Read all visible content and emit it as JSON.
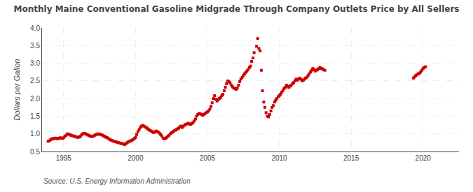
{
  "chart_data": {
    "type": "scatter",
    "title": "Monthly Maine Conventional Gasoline Midgrade Through Company Outlets Price by All Sellers",
    "ylabel": "Dollars per Gallon",
    "annotations": [
      "Source: U.S. Energy Information Administration"
    ],
    "color": "#cc0000",
    "marker": "square",
    "grid": true,
    "xlim": [
      1993.5,
      2022.5
    ],
    "xticks": [
      1995,
      2000,
      2005,
      2010,
      2015,
      2020
    ],
    "ylim": [
      0.5,
      4.0
    ],
    "yticks": [
      0.5,
      {
        "value": 1.0,
        "label": "1.0"
      },
      1.5,
      {
        "value": 2.0,
        "label": "2.0"
      },
      2.5,
      {
        "value": 3.0,
        "label": "3.0"
      },
      3.5,
      {
        "value": 4.0,
        "label": "4.0"
      }
    ],
    "x": [
      1993.92,
      1994.0,
      1994.08,
      1994.17,
      1994.25,
      1994.33,
      1994.42,
      1994.5,
      1994.58,
      1994.67,
      1994.75,
      1994.83,
      1994.92,
      1995.0,
      1995.08,
      1995.17,
      1995.25,
      1995.33,
      1995.42,
      1995.5,
      1995.58,
      1995.67,
      1995.75,
      1995.83,
      1995.92,
      1996.0,
      1996.08,
      1996.17,
      1996.25,
      1996.33,
      1996.42,
      1996.5,
      1996.58,
      1996.67,
      1996.75,
      1996.83,
      1996.92,
      1997.0,
      1997.08,
      1997.17,
      1997.25,
      1997.33,
      1997.42,
      1997.5,
      1997.58,
      1997.67,
      1997.75,
      1997.83,
      1997.92,
      1998.0,
      1998.08,
      1998.17,
      1998.25,
      1998.33,
      1998.42,
      1998.5,
      1998.58,
      1998.67,
      1998.75,
      1998.83,
      1998.92,
      1999.0,
      1999.08,
      1999.17,
      1999.25,
      1999.33,
      1999.42,
      1999.5,
      1999.58,
      1999.67,
      1999.75,
      1999.83,
      1999.92,
      2000.0,
      2000.08,
      2000.17,
      2000.25,
      2000.33,
      2000.42,
      2000.5,
      2000.58,
      2000.67,
      2000.75,
      2000.83,
      2000.92,
      2001.0,
      2001.08,
      2001.17,
      2001.25,
      2001.33,
      2001.42,
      2001.5,
      2001.58,
      2001.67,
      2001.75,
      2001.83,
      2001.92,
      2002.0,
      2002.08,
      2002.17,
      2002.25,
      2002.33,
      2002.42,
      2002.5,
      2002.58,
      2002.67,
      2002.75,
      2002.83,
      2002.92,
      2003.0,
      2003.08,
      2003.17,
      2003.25,
      2003.33,
      2003.42,
      2003.5,
      2003.58,
      2003.67,
      2003.75,
      2003.83,
      2003.92,
      2004.0,
      2004.08,
      2004.17,
      2004.25,
      2004.33,
      2004.42,
      2004.5,
      2004.58,
      2004.67,
      2004.75,
      2004.83,
      2004.92,
      2005.0,
      2005.08,
      2005.17,
      2005.25,
      2005.33,
      2005.42,
      2005.5,
      2005.58,
      2005.67,
      2005.75,
      2005.83,
      2005.92,
      2006.0,
      2006.08,
      2006.17,
      2006.25,
      2006.33,
      2006.42,
      2006.5,
      2006.58,
      2006.67,
      2006.75,
      2006.83,
      2006.92,
      2007.0,
      2007.08,
      2007.17,
      2007.25,
      2007.33,
      2007.42,
      2007.5,
      2007.58,
      2007.67,
      2007.75,
      2007.83,
      2007.92,
      2008.0,
      2008.08,
      2008.17,
      2008.25,
      2008.42,
      2008.5,
      2008.58,
      2008.67,
      2008.75,
      2008.83,
      2008.92,
      2009.0,
      2009.08,
      2009.17,
      2009.25,
      2009.33,
      2009.42,
      2009.5,
      2009.58,
      2009.67,
      2009.75,
      2009.83,
      2009.92,
      2010.0,
      2010.08,
      2010.17,
      2010.25,
      2010.33,
      2010.42,
      2010.5,
      2010.58,
      2010.67,
      2010.75,
      2010.83,
      2010.92,
      2011.0,
      2011.08,
      2011.17,
      2011.25,
      2011.33,
      2011.42,
      2011.5,
      2011.58,
      2011.67,
      2011.75,
      2011.83,
      2011.92,
      2012.0,
      2012.08,
      2012.17,
      2012.25,
      2012.33,
      2012.42,
      2012.5,
      2012.58,
      2012.67,
      2012.75,
      2012.83,
      2012.92,
      2013.0,
      2013.08,
      2013.17,
      2019.33,
      2019.42,
      2019.5,
      2019.58,
      2019.67,
      2019.75,
      2019.83,
      2019.92,
      2020.0,
      2020.08,
      2020.17
    ],
    "values": [
      0.79,
      0.8,
      0.83,
      0.85,
      0.87,
      0.86,
      0.88,
      0.87,
      0.86,
      0.87,
      0.89,
      0.88,
      0.87,
      0.89,
      0.93,
      0.96,
      1.0,
      0.99,
      0.98,
      0.96,
      0.95,
      0.94,
      0.93,
      0.92,
      0.91,
      0.9,
      0.91,
      0.93,
      0.97,
      1.0,
      1.01,
      1.01,
      0.99,
      0.97,
      0.96,
      0.94,
      0.92,
      0.93,
      0.94,
      0.96,
      0.98,
      0.99,
      1.0,
      0.99,
      0.98,
      0.97,
      0.95,
      0.93,
      0.91,
      0.9,
      0.88,
      0.85,
      0.83,
      0.82,
      0.8,
      0.79,
      0.78,
      0.77,
      0.76,
      0.75,
      0.74,
      0.73,
      0.72,
      0.71,
      0.7,
      0.72,
      0.75,
      0.77,
      0.79,
      0.8,
      0.82,
      0.84,
      0.87,
      0.9,
      0.98,
      1.06,
      1.12,
      1.18,
      1.22,
      1.24,
      1.22,
      1.2,
      1.18,
      1.15,
      1.12,
      1.1,
      1.08,
      1.06,
      1.04,
      1.05,
      1.08,
      1.07,
      1.05,
      1.02,
      0.98,
      0.94,
      0.88,
      0.86,
      0.87,
      0.9,
      0.93,
      0.96,
      1.0,
      1.03,
      1.05,
      1.08,
      1.1,
      1.12,
      1.14,
      1.16,
      1.2,
      1.22,
      1.18,
      1.22,
      1.25,
      1.27,
      1.28,
      1.3,
      1.28,
      1.27,
      1.29,
      1.32,
      1.36,
      1.42,
      1.5,
      1.55,
      1.58,
      1.57,
      1.55,
      1.53,
      1.55,
      1.57,
      1.6,
      1.62,
      1.65,
      1.7,
      1.78,
      1.88,
      2.0,
      2.08,
      1.98,
      1.93,
      1.97,
      2.0,
      2.03,
      2.08,
      2.12,
      2.22,
      2.32,
      2.42,
      2.5,
      2.48,
      2.44,
      2.38,
      2.33,
      2.3,
      2.28,
      2.26,
      2.3,
      2.38,
      2.48,
      2.55,
      2.6,
      2.65,
      2.7,
      2.74,
      2.78,
      2.82,
      2.88,
      2.92,
      3.05,
      3.15,
      3.3,
      3.48,
      3.7,
      3.42,
      3.35,
      2.8,
      2.22,
      1.9,
      1.75,
      1.6,
      1.5,
      1.48,
      1.55,
      1.65,
      1.75,
      1.8,
      1.9,
      1.95,
      2.0,
      2.05,
      2.08,
      2.12,
      2.18,
      2.22,
      2.28,
      2.32,
      2.38,
      2.35,
      2.32,
      2.35,
      2.38,
      2.42,
      2.45,
      2.5,
      2.55,
      2.52,
      2.55,
      2.58,
      2.55,
      2.5,
      2.52,
      2.55,
      2.58,
      2.6,
      2.65,
      2.7,
      2.75,
      2.8,
      2.85,
      2.82,
      2.78,
      2.8,
      2.82,
      2.85,
      2.88,
      2.85,
      2.84,
      2.82,
      2.8,
      2.58,
      2.62,
      2.65,
      2.68,
      2.7,
      2.72,
      2.75,
      2.8,
      2.85,
      2.88,
      2.9
    ]
  }
}
